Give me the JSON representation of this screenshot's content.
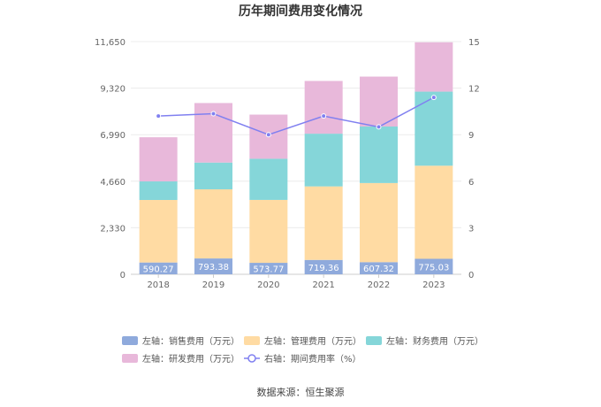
{
  "chart_data": {
    "type": "bar",
    "title": "历年期间费用变化情况",
    "categories": [
      "2018",
      "2019",
      "2020",
      "2021",
      "2022",
      "2023"
    ],
    "series": [
      {
        "name": "左轴：销售费用（万元）",
        "axis": "left",
        "color": "#8faadc",
        "values": [
          590.27,
          793.38,
          573.77,
          719.36,
          607.32,
          775.03
        ],
        "labels": [
          "590.27",
          "793.38",
          "573.77",
          "719.36",
          "607.32",
          "775.03"
        ]
      },
      {
        "name": "左轴：管理费用（万元）",
        "axis": "left",
        "color": "#ffdba3",
        "values": [
          3130,
          3460,
          3150,
          3680,
          3960,
          4660
        ]
      },
      {
        "name": "左轴：财务费用（万元）",
        "axis": "left",
        "color": "#85d6d9",
        "values": [
          930,
          1340,
          2060,
          2640,
          2830,
          3710
        ]
      },
      {
        "name": "左轴：研发费用（万元）",
        "axis": "left",
        "color": "#e8b8da",
        "values": [
          2210,
          2980,
          2210,
          2640,
          2500,
          2470
        ]
      },
      {
        "name": "右轴：期间费用率（%）",
        "axis": "right",
        "type": "line",
        "color": "#8080f0",
        "values": [
          10.2,
          10.35,
          9.0,
          10.2,
          9.5,
          11.4
        ]
      }
    ],
    "y_left": {
      "ticks": [
        "0",
        "2,330",
        "4,660",
        "6,990",
        "9,320",
        "11,650"
      ],
      "range": [
        0,
        11650
      ]
    },
    "y_right": {
      "ticks": [
        "0",
        "3",
        "6",
        "9",
        "12",
        "15"
      ],
      "range": [
        0,
        15
      ]
    },
    "source": "数据来源：恒生聚源"
  }
}
